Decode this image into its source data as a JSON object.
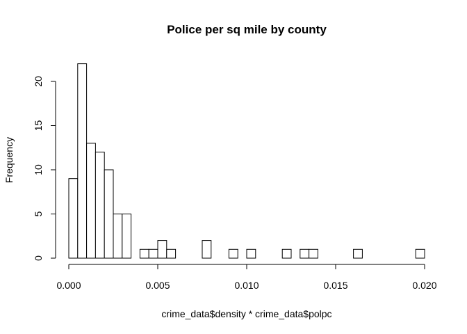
{
  "chart_data": {
    "type": "bar",
    "title": "Police per sq mile by county",
    "xlabel": "crime_data$density * crime_data$polpc",
    "ylabel": "Frequency",
    "bin_width": 0.0005,
    "bins_start": 0.0,
    "values": [
      9,
      22,
      13,
      12,
      10,
      5,
      5,
      0,
      1,
      1,
      2,
      1,
      0,
      0,
      0,
      2,
      0,
      0,
      1,
      0,
      1,
      0,
      0,
      0,
      1,
      0,
      1,
      1,
      0,
      0,
      0,
      0,
      1,
      0,
      0,
      0,
      0,
      0,
      0,
      1
    ],
    "xlim": [
      0.0,
      0.02
    ],
    "ylim": [
      0,
      22
    ],
    "x_ticks": [
      0.0,
      0.005,
      0.01,
      0.015,
      0.02
    ],
    "x_tick_labels": [
      "0.000",
      "0.005",
      "0.010",
      "0.015",
      "0.020"
    ],
    "y_ticks": [
      0,
      5,
      10,
      15,
      20
    ],
    "y_tick_labels": [
      "0",
      "5",
      "10",
      "15",
      "20"
    ],
    "grid": false
  }
}
